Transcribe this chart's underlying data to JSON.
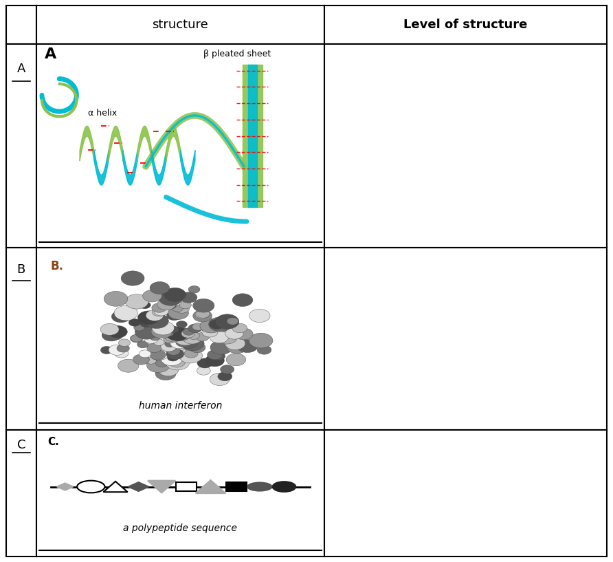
{
  "title_col1": "structure",
  "title_col2": "Level of structure",
  "row_labels": [
    "A",
    "B",
    "C"
  ],
  "row_A_labels": {
    "bold_label": "A",
    "alpha_helix": "α helix",
    "beta_sheet": "β pleated sheet"
  },
  "row_B_labels": {
    "label": "B.",
    "caption": "human interferon"
  },
  "row_C_labels": {
    "label": "C.",
    "caption": "a polypeptide sequence"
  },
  "bg_color": "#ffffff",
  "border_color": "#000000",
  "teal": "#00bcd4",
  "green": "#8bc34a",
  "gray_light": "#aaaaaa",
  "gray_mid": "#666666",
  "gray_dark": "#333333"
}
